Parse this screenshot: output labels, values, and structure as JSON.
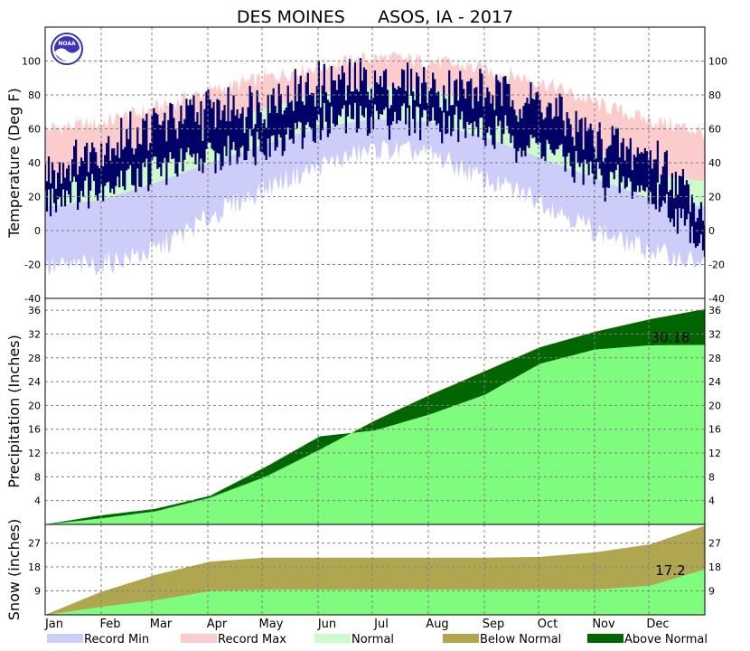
{
  "title": "DES MOINES      ASOS, IA - 2017",
  "logo_text": "NOAA",
  "colors": {
    "record_min": "#cccdf9",
    "record_max": "#fccbcb",
    "normal": "#ccfccc",
    "actual_temp": "#000066",
    "precip_actual": "#7ffc7e",
    "below_normal": "#b0a650",
    "above_normal": "#016601",
    "grid": "#808080"
  },
  "months": [
    "Jan",
    "Feb",
    "Mar",
    "Apr",
    "May",
    "Jun",
    "Jul",
    "Aug",
    "Sep",
    "Oct",
    "Nov",
    "Dec"
  ],
  "chart_data": [
    {
      "type": "area",
      "name": "temperature",
      "ylabel": "Temperature (Deg F)",
      "ylim": [
        -40,
        120
      ],
      "yticks": [
        -40,
        -20,
        0,
        20,
        40,
        60,
        80,
        100
      ],
      "x": [
        "Jan 1",
        "Feb 1",
        "Mar 1",
        "Apr 1",
        "May 1",
        "Jun 1",
        "Jul 1",
        "Aug 1",
        "Sep 1",
        "Oct 1",
        "Nov 1",
        "Dec 1",
        "Dec 31"
      ],
      "record_max": [
        60,
        63,
        72,
        82,
        90,
        97,
        102,
        100,
        95,
        88,
        75,
        65,
        58
      ],
      "normal_high": [
        30,
        35,
        47,
        61,
        72,
        81,
        85,
        83,
        76,
        63,
        47,
        33,
        29
      ],
      "normal_low": [
        14,
        18,
        28,
        40,
        51,
        61,
        66,
        64,
        55,
        43,
        31,
        19,
        14
      ],
      "record_min": [
        -22,
        -20,
        -12,
        8,
        25,
        38,
        48,
        45,
        30,
        18,
        0,
        -12,
        -20
      ],
      "series": [
        {
          "name": "Actual High",
          "values": [
            34,
            48,
            62,
            70,
            76,
            85,
            88,
            84,
            82,
            76,
            52,
            46,
            12
          ]
        },
        {
          "name": "Actual Low",
          "values": [
            18,
            28,
            36,
            42,
            52,
            62,
            68,
            66,
            58,
            50,
            32,
            22,
            -8
          ]
        }
      ],
      "grid": true
    },
    {
      "type": "area",
      "name": "precipitation",
      "ylabel": "Precipitation (Inches)",
      "ylim": [
        0,
        38
      ],
      "yticks": [
        4,
        8,
        12,
        16,
        20,
        24,
        28,
        32,
        36
      ],
      "x": [
        "Jan 1",
        "Feb 1",
        "Mar 1",
        "Apr 1",
        "May 1",
        "Jun 1",
        "Jul 1",
        "Aug 1",
        "Sep 1",
        "Oct 1",
        "Nov 1",
        "Dec 1",
        "Dec 31"
      ],
      "normal_cumulative": [
        0,
        1.0,
        2.2,
        4.5,
        8.0,
        12.6,
        17.5,
        21.8,
        25.8,
        29.8,
        32.4,
        34.5,
        36.2
      ],
      "series": [
        {
          "name": "Actual",
          "values": [
            0,
            1.5,
            2.6,
            4.8,
            9.6,
            14.8,
            15.8,
            18.5,
            21.8,
            27.0,
            29.4,
            30.1,
            30.18
          ]
        }
      ],
      "annotation": "30.18",
      "grid": true
    },
    {
      "type": "area",
      "name": "snow",
      "ylabel": "Snow (inches)",
      "ylim": [
        0,
        34
      ],
      "yticks": [
        9,
        18,
        27
      ],
      "x": [
        "Jan 1",
        "Feb 1",
        "Mar 1",
        "Apr 1",
        "May 1",
        "Jun 1",
        "Jul 1",
        "Aug 1",
        "Sep 1",
        "Oct 1",
        "Nov 1",
        "Dec 1",
        "Dec 31"
      ],
      "normal_cumulative": [
        0,
        8.5,
        15,
        20,
        21.5,
        21.5,
        21.5,
        21.5,
        21.5,
        21.8,
        23.5,
        26.5,
        33.5
      ],
      "series": [
        {
          "name": "Actual",
          "values": [
            0,
            3,
            5.5,
            9,
            9.5,
            9.5,
            9.5,
            9.5,
            9.5,
            9.5,
            9.5,
            11,
            17.2
          ]
        }
      ],
      "annotation": "17.2",
      "grid": true
    }
  ],
  "legend": [
    {
      "label": "Record Min",
      "color": "#cccdf9"
    },
    {
      "label": "Record Max",
      "color": "#fccbcb"
    },
    {
      "label": "Normal",
      "color": "#ccfccc"
    },
    {
      "label": "Below Normal",
      "color": "#b0a650"
    },
    {
      "label": "Above Normal",
      "color": "#016601"
    }
  ]
}
